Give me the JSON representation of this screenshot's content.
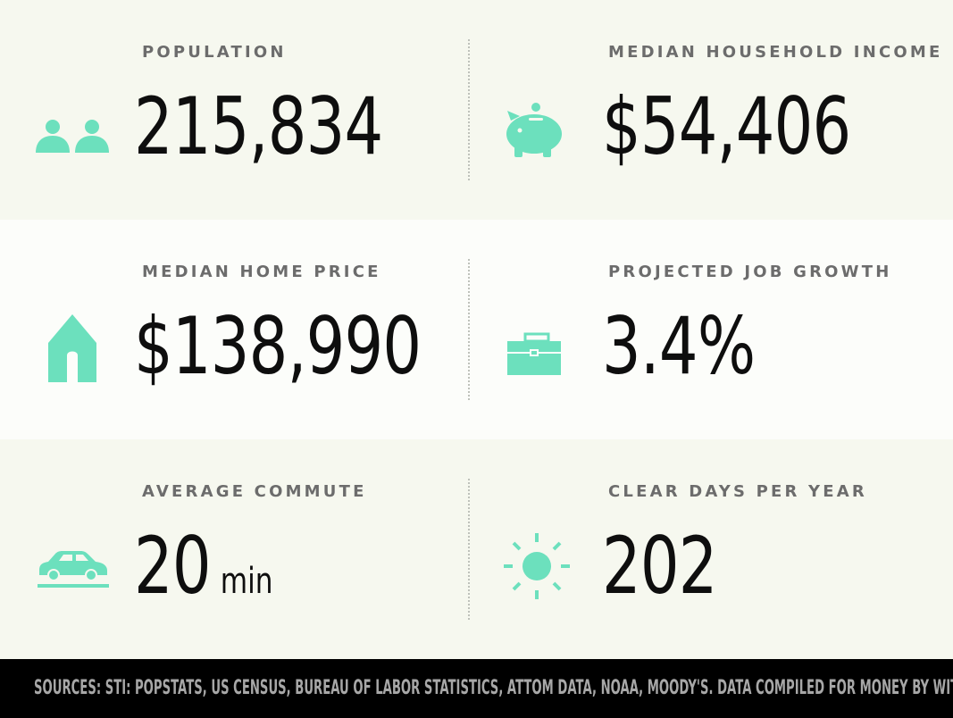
{
  "colors": {
    "accent": "#6ce0bd",
    "band_light": "#f6f8ef",
    "band_white": "#fcfdfa",
    "label": "#6c6c6c",
    "value": "#0e0e0e",
    "footer_bg": "#000000",
    "footer_text": "#a7a7a7"
  },
  "stats": [
    {
      "label": "POPULATION",
      "value": "215,834",
      "icon": "people-icon"
    },
    {
      "label": "MEDIAN HOUSEHOLD INCOME",
      "value": "$54,406",
      "icon": "piggy-bank-icon"
    },
    {
      "label": "MEDIAN HOME PRICE",
      "value": "$138,990",
      "icon": "house-icon"
    },
    {
      "label": "PROJECTED JOB GROWTH",
      "value": "3.4%",
      "icon": "briefcase-icon"
    },
    {
      "label": "AVERAGE COMMUTE",
      "value": "20",
      "unit": "min",
      "icon": "car-icon"
    },
    {
      "label": "CLEAR DAYS PER YEAR",
      "value": "202",
      "icon": "sun-icon"
    }
  ],
  "footer": {
    "sources": "SOURCES: STI: POPSTATS, US CENSUS, BUREAU OF LABOR STATISTICS, ATTOM DATA, NOAA, MOODY'S. DATA COMPILED FOR MONEY BY WITLYTIC."
  }
}
